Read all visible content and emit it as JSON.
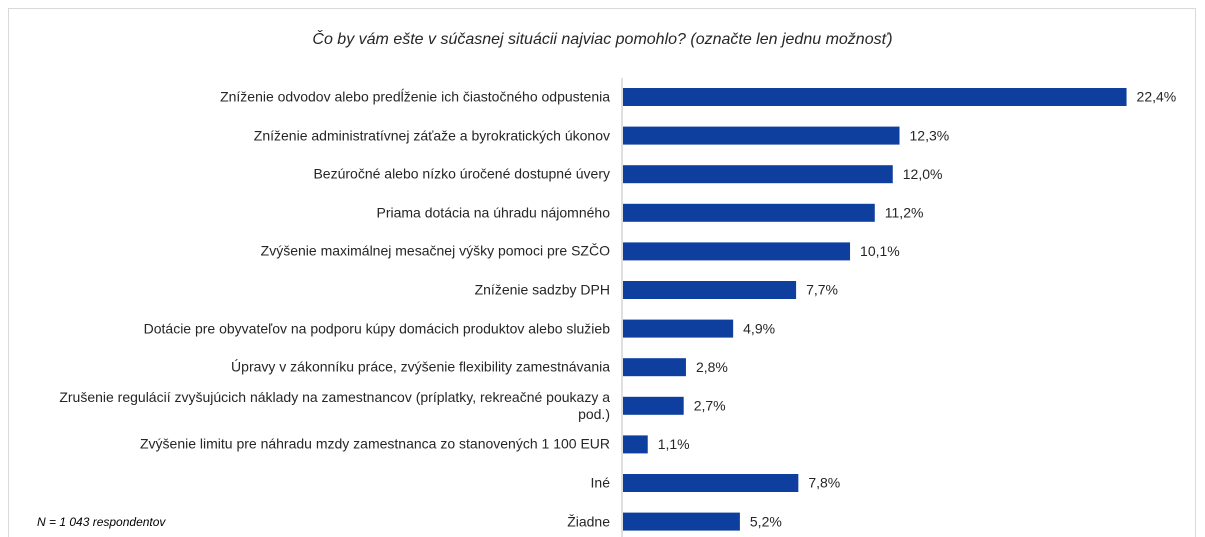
{
  "chart_data": {
    "type": "bar",
    "orientation": "horizontal",
    "title": "Čo by vám ešte v súčasnej situácii najviac pomohlo? (označte len jednu možnosť)",
    "note": "N = 1 043 respondentov",
    "categories": [
      "Zníženie odvodov alebo predĺženie ich čiastočného odpustenia",
      "Zníženie administratívnej záťaže a byrokratických úkonov",
      "Bezúročné alebo nízko úročené dostupné úvery",
      "Priama dotácia na úhradu nájomného",
      "Zvýšenie maximálnej mesačnej výšky pomoci pre SZČO",
      "Zníženie sadzby DPH",
      "Dotácie pre obyvateľov na podporu kúpy domácich produktov alebo služieb",
      "Úpravy v zákonníku práce, zvýšenie flexibility zamestnávania",
      "Zrušenie regulácií zvyšujúcich náklady na zamestnancov (príplatky, rekreačné poukazy a pod.)",
      "Zvýšenie limitu pre náhradu mzdy zamestnanca zo stanovených  1 100 EUR",
      "Iné",
      "Žiadne"
    ],
    "values": [
      22.4,
      12.3,
      12.0,
      11.2,
      10.1,
      7.7,
      4.9,
      2.8,
      2.7,
      1.1,
      7.8,
      5.2
    ],
    "value_labels": [
      "22,4%",
      "12,3%",
      "12,0%",
      "11,2%",
      "10,1%",
      "7,7%",
      "4,9%",
      "2,8%",
      "2,7%",
      "1,1%",
      "7,8%",
      "5,2%"
    ],
    "color": "#0f3f9e",
    "xlim": [
      0,
      25
    ]
  }
}
